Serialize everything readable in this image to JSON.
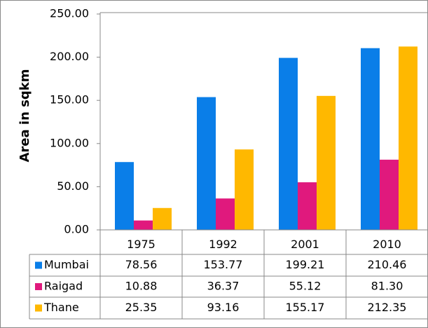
{
  "chart_data": {
    "type": "bar",
    "y_label": "Area  in sqkm",
    "categories": [
      "1975",
      "1992",
      "2001",
      "2010"
    ],
    "series": [
      {
        "name": "Mumbai",
        "color": "#0a7ee8",
        "values": [
          78.56,
          153.77,
          199.21,
          210.46
        ],
        "value_labels": [
          "78.56",
          "153.77",
          "199.21",
          "210.46"
        ]
      },
      {
        "name": "Raigad",
        "color": "#e0197d",
        "values": [
          10.88,
          36.37,
          55.12,
          81.3
        ],
        "value_labels": [
          "10.88",
          "36.37",
          "55.12",
          "81.30"
        ]
      },
      {
        "name": "Thane",
        "color": "#ffb800",
        "values": [
          25.35,
          93.16,
          155.17,
          212.35
        ],
        "value_labels": [
          "25.35",
          "93.16",
          "155.17",
          "212.35"
        ]
      }
    ],
    "ylim": [
      0,
      250
    ],
    "yticks": [
      {
        "value": 0,
        "label": "0.00"
      },
      {
        "value": 50,
        "label": "50.00"
      },
      {
        "value": 100,
        "label": "100.00"
      },
      {
        "value": 150,
        "label": "150.00"
      },
      {
        "value": 200,
        "label": "200.00"
      },
      {
        "value": 250,
        "label": "250.00"
      }
    ],
    "grid": false,
    "data_table": true
  }
}
